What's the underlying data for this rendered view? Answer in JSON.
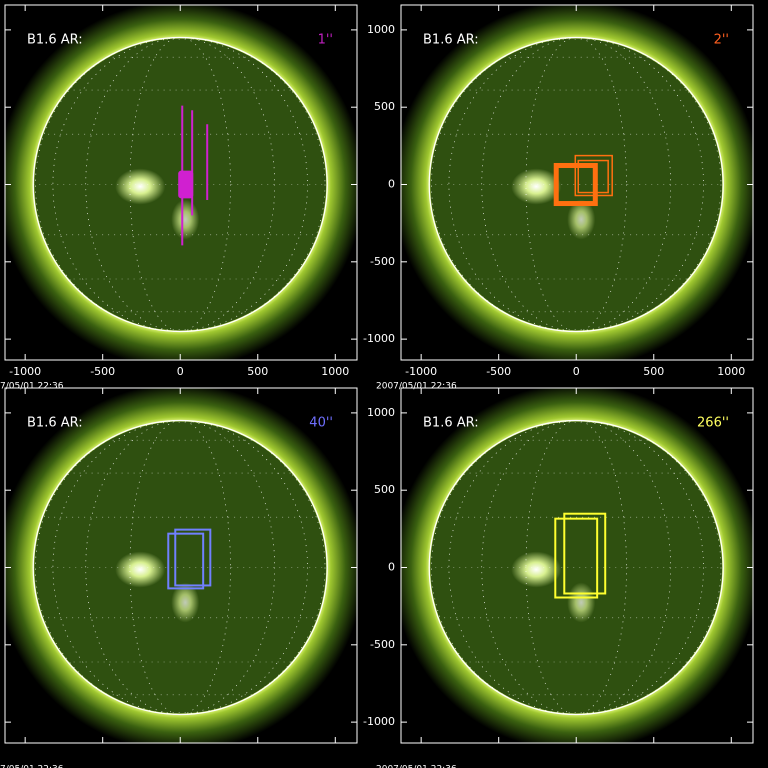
{
  "chart_data": [
    {
      "type": "image",
      "label": "B1.6 AR:",
      "tag": "1''",
      "tag_color": "#c020c0",
      "date": "7/05/01 22:36",
      "xlim": [
        -1130,
        1140
      ],
      "ylim": [
        -1135,
        1161
      ],
      "xticks": [
        -1000,
        -500,
        0,
        500,
        1000
      ],
      "yticks": [
        -1000,
        -500,
        0,
        500,
        1000
      ],
      "boxes": [
        {
          "color": "#d020d0",
          "width": 0,
          "values": [
            -13,
            -90,
            84,
            90
          ]
        }
      ],
      "segments": [
        {
          "color": "#d020d0",
          "values": [
            13,
            -394,
            13,
            510
          ]
        },
        {
          "color": "#d020d0",
          "values": [
            77,
            -200,
            77,
            480
          ]
        },
        {
          "color": "#d020d0",
          "values": [
            174,
            -100,
            174,
            390
          ]
        }
      ]
    },
    {
      "type": "image",
      "label": "B1.6 AR:",
      "tag": "2''",
      "tag_color": "#ff6020",
      "date": "2007/05/01 22:36",
      "xlim": [
        -1130,
        1140
      ],
      "ylim": [
        -1135,
        1161
      ],
      "xticks": [
        -1000,
        -500,
        0,
        500,
        1000
      ],
      "yticks": [
        -1000,
        -500,
        0,
        500,
        1000
      ],
      "boxes": [
        {
          "color": "#ff7010",
          "width": 5,
          "values": [
            -129,
            -123,
            123,
            123
          ]
        },
        {
          "color": "#ff7010",
          "width": 1.5,
          "values": [
            -6,
            -71,
            232,
            187
          ]
        },
        {
          "color": "#ff7010",
          "width": 1.5,
          "values": [
            13,
            -52,
            206,
            155
          ]
        }
      ],
      "segments": []
    },
    {
      "type": "image",
      "label": "B1.6 AR:",
      "tag": "40''",
      "tag_color": "#7070ff",
      "date": "7/05/01 22:36",
      "xlim": [
        -1130,
        1140
      ],
      "ylim": [
        -1135,
        1161
      ],
      "xticks": [
        -1000,
        -500,
        0,
        500,
        1000
      ],
      "yticks": [
        -1000,
        -500,
        0,
        500,
        1000
      ],
      "boxes": [
        {
          "color": "#7080ff",
          "width": 2,
          "values": [
            -77,
            -135,
            148,
            219
          ]
        },
        {
          "color": "#7080ff",
          "width": 2,
          "values": [
            -32,
            -116,
            194,
            245
          ]
        }
      ],
      "segments": []
    },
    {
      "type": "image",
      "label": "B1.6 AR:",
      "tag": "266''",
      "tag_color": "#ffff60",
      "date": "2007/05/01 22:36",
      "xlim": [
        -1130,
        1140
      ],
      "ylim": [
        -1135,
        1161
      ],
      "xticks": [
        -1000,
        -500,
        0,
        500,
        1000
      ],
      "yticks": [
        -1000,
        -500,
        0,
        500,
        1000
      ],
      "boxes": [
        {
          "color": "#ffff30",
          "width": 2,
          "values": [
            -135,
            -194,
            135,
            316
          ]
        },
        {
          "color": "#ffff30",
          "width": 2,
          "values": [
            -77,
            -168,
            187,
            348
          ]
        }
      ],
      "segments": []
    }
  ]
}
